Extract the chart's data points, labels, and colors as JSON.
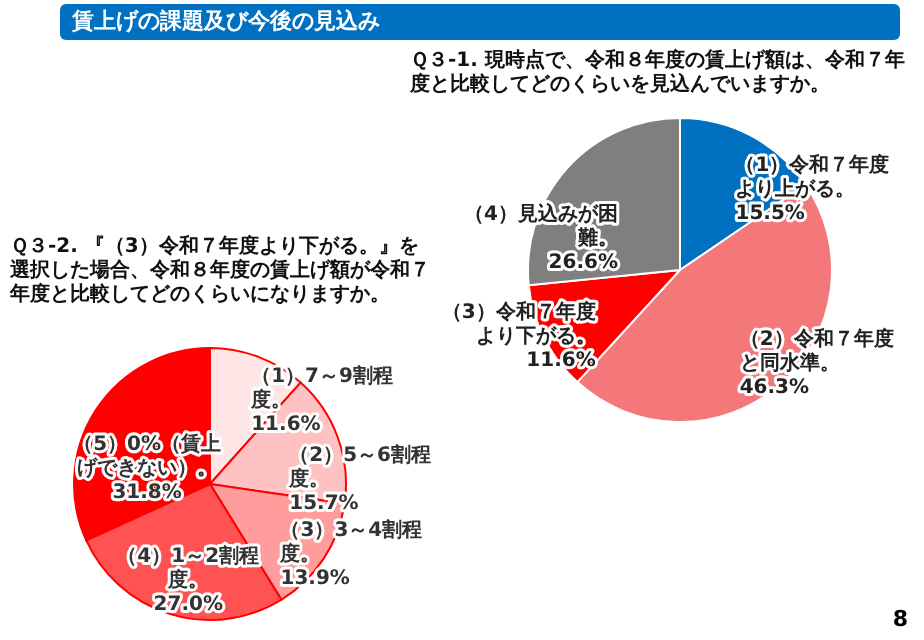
{
  "chart_data": [
    {
      "type": "pie",
      "title": "賃上げの課題及び今後の見込み",
      "subtitle": "Ｑ３-1. 現時点で、令和８年度の賃上げ額は、令和７年度と比較してどのくらいを見込んでいますか。",
      "categories": [
        "（1）令和７年度より上がる。",
        "（2）令和７年度と同水準。",
        "（3）令和７年度より下がる。",
        "（4）見込みが困難。"
      ],
      "values": [
        15.5,
        46.3,
        11.6,
        26.6
      ],
      "colors": [
        "#0070c0",
        "#f4777a",
        "#ff0000",
        "#7f7f7f"
      ],
      "value_labels": [
        "15.5%",
        "46.3%",
        "11.6%",
        "26.6%"
      ]
    },
    {
      "type": "pie",
      "title": "Ｑ３-2. 『（3）令和７年度より下がる。』を選択した場合、令和８年度の賃上げ額が令和７年度と比較してどのくらいになりますか。",
      "categories": [
        "（1）7～9割程度。",
        "（2）5～6割程度。",
        "（3）3～4割程度。",
        "（4）1～2割程度。",
        "（5）0%（賃上げできない）。"
      ],
      "values": [
        11.6,
        15.7,
        13.9,
        27.0,
        31.8
      ],
      "colors": [
        "#ffe6e6",
        "#ffc2c2",
        "#ff9c9c",
        "#ff5252",
        "#ff0000"
      ],
      "value_labels": [
        "11.6%",
        "15.7%",
        "13.9%",
        "27.0%",
        "31.8%"
      ],
      "annotations": [
        "8"
      ]
    }
  ]
}
